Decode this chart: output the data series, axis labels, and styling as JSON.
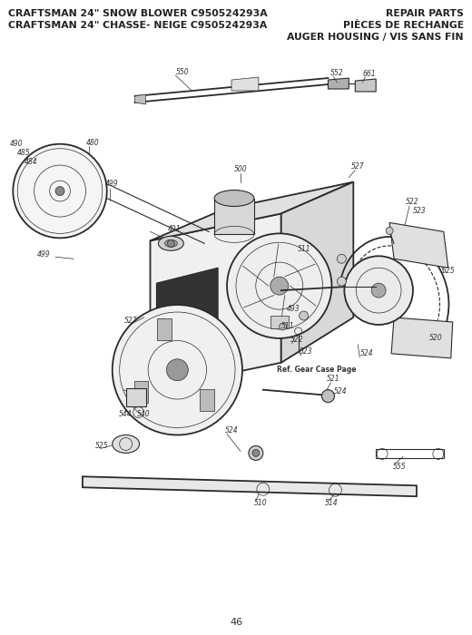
{
  "title_line1_left": "CRAFTSMAN 24\" SNOW BLOWER C950524293A",
  "title_line1_right": "REPAIR PARTS",
  "title_line2_left": "CRAFTSMAN 24\" CHASSE- NEIGE C950524293A",
  "title_line2_right": "PIÈCES DE RECHANGE",
  "title_line3_right": "AUGER HOUSING / VIS SANS FIN",
  "page_number": "46",
  "bg": "#ffffff",
  "lc": "#2a2a2a",
  "tc": "#000000",
  "gray_fill": "#c8c8c8",
  "dark_fill": "#444444",
  "mid_fill": "#888888"
}
